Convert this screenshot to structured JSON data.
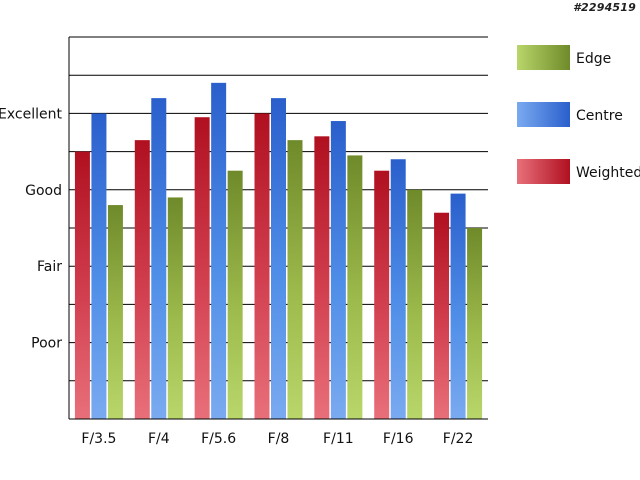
{
  "watermark": "#2294519",
  "chart_data": {
    "type": "bar",
    "title": "",
    "xlabel": "",
    "ylabel": "",
    "categories": [
      "F/3.5",
      "F/4",
      "F/5.6",
      "F/8",
      "F/11",
      "F/16",
      "F/22"
    ],
    "y_ticks": [
      {
        "label": "Poor",
        "value": 2
      },
      {
        "label": "Fair",
        "value": 4
      },
      {
        "label": "Good",
        "value": 6
      },
      {
        "label": "Excellent",
        "value": 8
      }
    ],
    "ylim": [
      0,
      10
    ],
    "grid": true,
    "legend_position": "right",
    "series": [
      {
        "name": "Weighted",
        "color": "#c8202e",
        "values": [
          7.0,
          7.3,
          7.9,
          8.0,
          7.4,
          6.5,
          5.4
        ]
      },
      {
        "name": "Centre",
        "color": "#2f6fd8",
        "values": [
          8.0,
          8.4,
          8.8,
          8.4,
          7.8,
          6.8,
          5.9
        ]
      },
      {
        "name": "Edge",
        "color": "#8aa83a",
        "values": [
          5.6,
          5.8,
          6.5,
          7.3,
          6.9,
          6.0,
          5.0
        ]
      }
    ]
  }
}
